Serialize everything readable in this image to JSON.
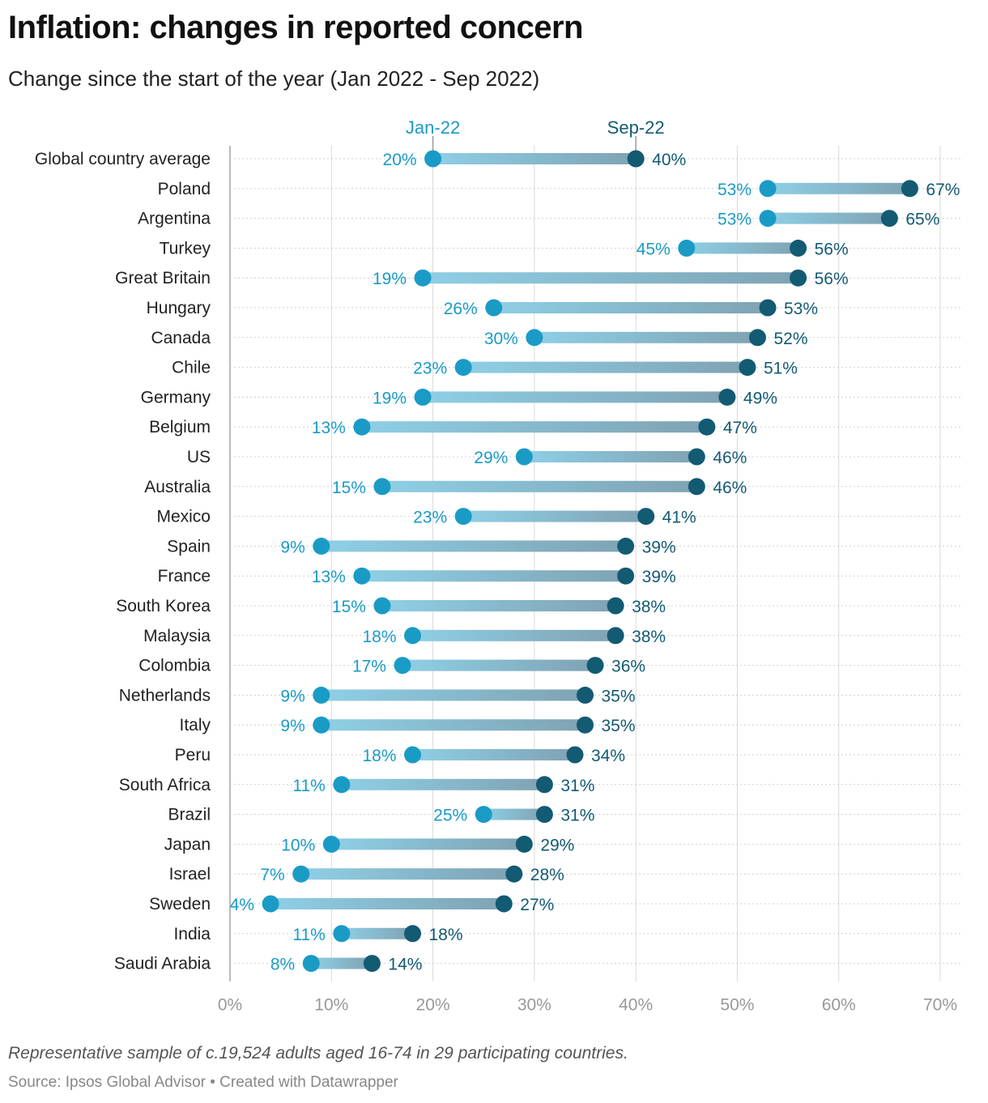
{
  "title": "Inflation: changes in reported concern",
  "subtitle": "Change since the start of the year (Jan 2022 - Sep 2022)",
  "footnote": "Representative sample of c.19,524 adults aged 16-74 in 29 participating countries.",
  "source": "Source: Ipsos Global Advisor • Created with Datawrapper",
  "colors": {
    "start": "#1a9bc6",
    "end": "#135a73",
    "bar_start": "#8ecfe6",
    "bar_end": "#7fa3b3",
    "grid": "#d9d9d9"
  },
  "chart_data": {
    "type": "dumbbell",
    "series": [
      {
        "name": "Jan-22",
        "values": [
          20,
          53,
          53,
          45,
          19,
          26,
          30,
          23,
          19,
          13,
          29,
          15,
          23,
          9,
          13,
          15,
          18,
          17,
          9,
          9,
          18,
          11,
          25,
          10,
          7,
          4,
          11,
          8
        ]
      },
      {
        "name": "Sep-22",
        "values": [
          40,
          67,
          65,
          56,
          56,
          53,
          52,
          51,
          49,
          47,
          46,
          46,
          41,
          39,
          39,
          38,
          38,
          36,
          35,
          35,
          34,
          31,
          31,
          29,
          28,
          27,
          18,
          14
        ]
      }
    ],
    "categories": [
      "Global country average",
      "Poland",
      "Argentina",
      "Turkey",
      "Great Britain",
      "Hungary",
      "Canada",
      "Chile",
      "Germany",
      "Belgium",
      "US",
      "Australia",
      "Mexico",
      "Spain",
      "France",
      "South Korea",
      "Malaysia",
      "Colombia",
      "Netherlands",
      "Italy",
      "Peru",
      "South Africa",
      "Brazil",
      "Japan",
      "Israel",
      "Sweden",
      "India",
      "Saudi Arabia"
    ],
    "x_ticks": [
      "0%",
      "10%",
      "20%",
      "30%",
      "40%",
      "50%",
      "60%",
      "70%"
    ],
    "xlim": [
      0,
      70
    ],
    "value_suffix": "%",
    "series_headers": [
      "Jan-22",
      "Sep-22"
    ]
  }
}
